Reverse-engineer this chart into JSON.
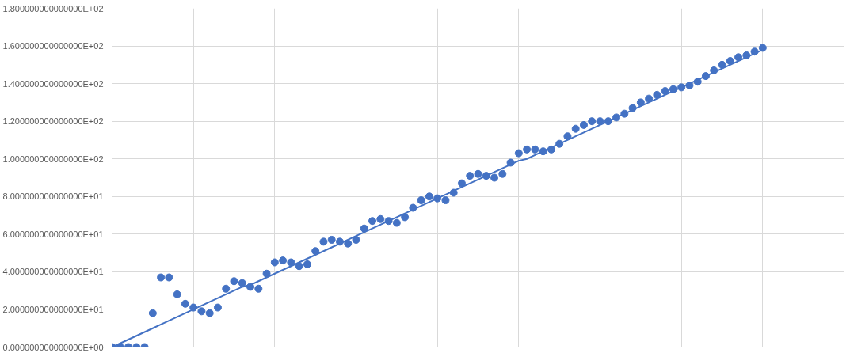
{
  "chart_data": {
    "type": "scatter",
    "categories": [
      null,
      null,
      null,
      null,
      null,
      null,
      null,
      null,
      null,
      null,
      null,
      null,
      null,
      null,
      null,
      null,
      null,
      null,
      null,
      null,
      null,
      null,
      null,
      null,
      null,
      null,
      null,
      null,
      null,
      null,
      null,
      null,
      null,
      null,
      null,
      null,
      null,
      null,
      null,
      null,
      null,
      null,
      null,
      null,
      null,
      null,
      null,
      null,
      null,
      null,
      null,
      null,
      null,
      null,
      null,
      null,
      null,
      null,
      null,
      null,
      null,
      null,
      null,
      null,
      null,
      null,
      null,
      null,
      null,
      null,
      null,
      null,
      null,
      null,
      null,
      null,
      null,
      null,
      null,
      null,
      null
    ],
    "ylim": [
      0,
      180
    ],
    "yticks": [
      {
        "value": 0,
        "label": "0.000000000000000E+00"
      },
      {
        "value": 20,
        "label": "2.000000000000000E+01"
      },
      {
        "value": 40,
        "label": "4.000000000000000E+01"
      },
      {
        "value": 60,
        "label": "6.000000000000000E+01"
      },
      {
        "value": 80,
        "label": "8.000000000000000E+01"
      },
      {
        "value": 100,
        "label": "1.000000000000000E+02"
      },
      {
        "value": 120,
        "label": "1.200000000000000E+02"
      },
      {
        "value": 140,
        "label": "1.400000000000000E+02"
      },
      {
        "value": 160,
        "label": "1.600000000000000E+02"
      },
      {
        "value": 180,
        "label": "1.800000000000000E+02"
      }
    ],
    "grid": true,
    "marker": "circle",
    "series": [
      {
        "color": "#4472c4",
        "values": [
          0,
          0,
          0,
          0,
          0,
          18,
          37,
          37,
          28,
          23,
          21,
          19,
          18,
          21,
          31,
          35,
          34,
          32,
          31,
          39,
          45,
          46,
          45,
          43,
          44,
          51,
          56,
          57,
          56,
          55,
          57,
          63,
          67,
          68,
          67,
          66,
          69,
          74,
          78,
          80,
          79,
          78,
          82,
          87,
          91,
          92,
          91,
          90,
          92,
          98,
          103,
          105,
          105,
          104,
          105,
          108,
          112,
          116,
          118,
          120,
          120,
          120,
          122,
          124,
          127,
          130,
          132,
          134,
          136,
          137,
          138,
          139,
          141,
          144,
          147,
          150,
          152,
          154,
          155,
          157,
          159
        ]
      },
      {
        "type": "line",
        "marker": "none",
        "line_style": "solid",
        "color": "#4472c4",
        "values": [
          0,
          2,
          4,
          6,
          8,
          10,
          12,
          14,
          16,
          18,
          20,
          22,
          24,
          26,
          28,
          30,
          32,
          33,
          35,
          37,
          39,
          41,
          43,
          45,
          47,
          49,
          51,
          53,
          55,
          57,
          59,
          61,
          63,
          65,
          67,
          69,
          71,
          73,
          75,
          77,
          79,
          81,
          83,
          85,
          87,
          89,
          91,
          93,
          95,
          97,
          99,
          100,
          102,
          104,
          106,
          108,
          110,
          112,
          114,
          116,
          118,
          120,
          122,
          124,
          126,
          128,
          130,
          132,
          134,
          136,
          138,
          140,
          142,
          144,
          146,
          148,
          150,
          152,
          154,
          156,
          158
        ]
      }
    ]
  }
}
